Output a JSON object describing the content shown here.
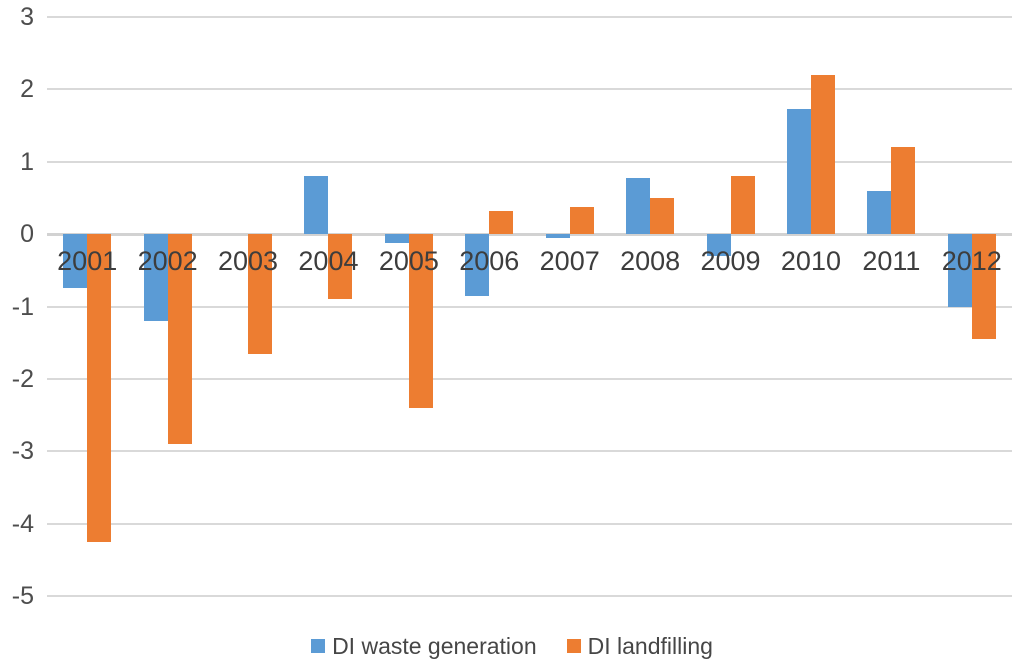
{
  "chart_data": {
    "type": "bar",
    "title": "",
    "xlabel": "",
    "ylabel": "",
    "categories": [
      "2001",
      "2002",
      "2003",
      "2004",
      "2005",
      "2006",
      "2007",
      "2008",
      "2009",
      "2010",
      "2011",
      "2012"
    ],
    "series": [
      {
        "name": "DI waste generation",
        "color": "#5B9BD5",
        "values": [
          -0.75,
          -1.2,
          0,
          0.8,
          -0.12,
          -0.85,
          -0.05,
          0.78,
          -0.3,
          1.73,
          0.6,
          -1.0
        ]
      },
      {
        "name": "DI landfilling",
        "color": "#ED7D31",
        "values": [
          -4.25,
          -2.9,
          -1.65,
          -0.9,
          -2.4,
          0.32,
          0.37,
          0.5,
          0.8,
          2.2,
          1.2,
          -1.45
        ]
      }
    ],
    "ylim": [
      -5,
      3
    ],
    "yticks": [
      3,
      2,
      1,
      0,
      -1,
      -2,
      -3,
      -4,
      -5
    ],
    "grid": true,
    "legend_position": "bottom",
    "colors": {
      "grid": "#d9d9d9",
      "zero_line": "#d2d2d2",
      "axis_text": "#4d4d4d",
      "category_text": "#3d3d3d"
    }
  }
}
